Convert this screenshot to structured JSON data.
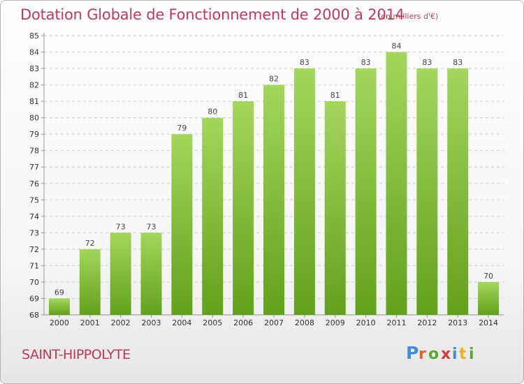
{
  "header": {
    "title": "Dotation Globale de Fonctionnement de 2000 à 2014",
    "unit": "(en milliers d'€)"
  },
  "footer": {
    "commune": "SAINT-HIPPOLYTE",
    "logo_text": "Proxiti"
  },
  "colors": {
    "title": "#c0395a",
    "bar_light": "#a4d65c",
    "bar_dark": "#62a11a",
    "gridline": "#cccccc"
  },
  "chart_data": {
    "type": "bar",
    "title": "Dotation Globale de Fonctionnement de 2000 à 2014",
    "subtitle": "(en milliers d'€)",
    "xlabel": "",
    "ylabel": "",
    "categories": [
      "2000",
      "2001",
      "2002",
      "2003",
      "2004",
      "2005",
      "2006",
      "2007",
      "2008",
      "2009",
      "2010",
      "2011",
      "2012",
      "2013",
      "2014"
    ],
    "values": [
      69,
      72,
      73,
      73,
      79,
      80,
      81,
      82,
      83,
      81,
      83,
      84,
      83,
      83,
      70
    ],
    "ylim": [
      68,
      85
    ],
    "yticks": [
      "68",
      "69",
      "70",
      "71",
      "72",
      "73",
      "74",
      "75",
      "76",
      "77",
      "78",
      "79",
      "80",
      "81",
      "82",
      "83",
      "84",
      "85"
    ],
    "grid": true,
    "legend": "none"
  }
}
